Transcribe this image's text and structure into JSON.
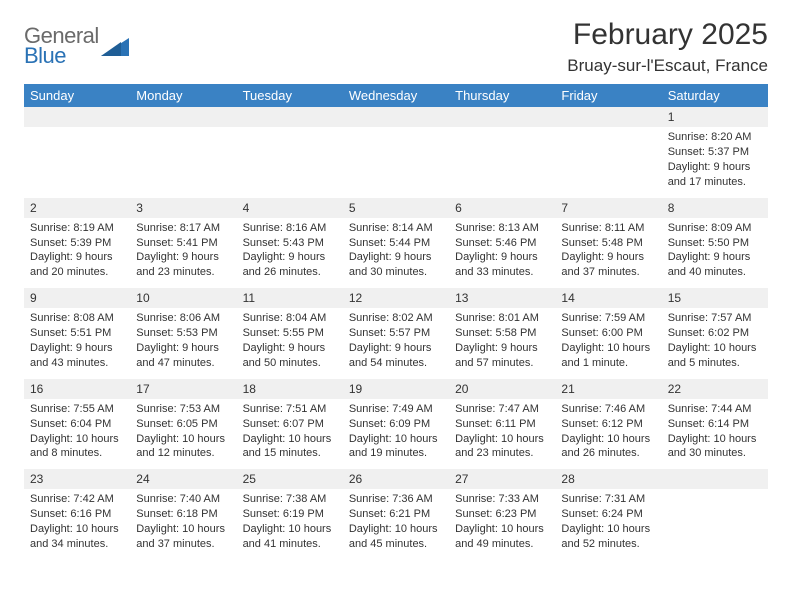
{
  "logo": {
    "text_top": "General",
    "text_bottom": "Blue"
  },
  "title": "February 2025",
  "location": "Bruay-sur-l'Escaut, France",
  "colors": {
    "header_bg": "#3a82c4",
    "header_fg": "#ffffff",
    "daynum_bg": "#f0f0f0",
    "page_bg": "#ffffff",
    "text": "#333333",
    "logo_gray": "#6a6a6a",
    "logo_blue": "#2a72b5"
  },
  "columns": [
    "Sunday",
    "Monday",
    "Tuesday",
    "Wednesday",
    "Thursday",
    "Friday",
    "Saturday"
  ],
  "weeks": [
    {
      "nums": [
        "",
        "",
        "",
        "",
        "",
        "",
        "1"
      ],
      "cells": [
        null,
        null,
        null,
        null,
        null,
        null,
        {
          "sunrise": "Sunrise: 8:20 AM",
          "sunset": "Sunset: 5:37 PM",
          "day1": "Daylight: 9 hours",
          "day2": "and 17 minutes."
        }
      ]
    },
    {
      "nums": [
        "2",
        "3",
        "4",
        "5",
        "6",
        "7",
        "8"
      ],
      "cells": [
        {
          "sunrise": "Sunrise: 8:19 AM",
          "sunset": "Sunset: 5:39 PM",
          "day1": "Daylight: 9 hours",
          "day2": "and 20 minutes."
        },
        {
          "sunrise": "Sunrise: 8:17 AM",
          "sunset": "Sunset: 5:41 PM",
          "day1": "Daylight: 9 hours",
          "day2": "and 23 minutes."
        },
        {
          "sunrise": "Sunrise: 8:16 AM",
          "sunset": "Sunset: 5:43 PM",
          "day1": "Daylight: 9 hours",
          "day2": "and 26 minutes."
        },
        {
          "sunrise": "Sunrise: 8:14 AM",
          "sunset": "Sunset: 5:44 PM",
          "day1": "Daylight: 9 hours",
          "day2": "and 30 minutes."
        },
        {
          "sunrise": "Sunrise: 8:13 AM",
          "sunset": "Sunset: 5:46 PM",
          "day1": "Daylight: 9 hours",
          "day2": "and 33 minutes."
        },
        {
          "sunrise": "Sunrise: 8:11 AM",
          "sunset": "Sunset: 5:48 PM",
          "day1": "Daylight: 9 hours",
          "day2": "and 37 minutes."
        },
        {
          "sunrise": "Sunrise: 8:09 AM",
          "sunset": "Sunset: 5:50 PM",
          "day1": "Daylight: 9 hours",
          "day2": "and 40 minutes."
        }
      ]
    },
    {
      "nums": [
        "9",
        "10",
        "11",
        "12",
        "13",
        "14",
        "15"
      ],
      "cells": [
        {
          "sunrise": "Sunrise: 8:08 AM",
          "sunset": "Sunset: 5:51 PM",
          "day1": "Daylight: 9 hours",
          "day2": "and 43 minutes."
        },
        {
          "sunrise": "Sunrise: 8:06 AM",
          "sunset": "Sunset: 5:53 PM",
          "day1": "Daylight: 9 hours",
          "day2": "and 47 minutes."
        },
        {
          "sunrise": "Sunrise: 8:04 AM",
          "sunset": "Sunset: 5:55 PM",
          "day1": "Daylight: 9 hours",
          "day2": "and 50 minutes."
        },
        {
          "sunrise": "Sunrise: 8:02 AM",
          "sunset": "Sunset: 5:57 PM",
          "day1": "Daylight: 9 hours",
          "day2": "and 54 minutes."
        },
        {
          "sunrise": "Sunrise: 8:01 AM",
          "sunset": "Sunset: 5:58 PM",
          "day1": "Daylight: 9 hours",
          "day2": "and 57 minutes."
        },
        {
          "sunrise": "Sunrise: 7:59 AM",
          "sunset": "Sunset: 6:00 PM",
          "day1": "Daylight: 10 hours",
          "day2": "and 1 minute."
        },
        {
          "sunrise": "Sunrise: 7:57 AM",
          "sunset": "Sunset: 6:02 PM",
          "day1": "Daylight: 10 hours",
          "day2": "and 5 minutes."
        }
      ]
    },
    {
      "nums": [
        "16",
        "17",
        "18",
        "19",
        "20",
        "21",
        "22"
      ],
      "cells": [
        {
          "sunrise": "Sunrise: 7:55 AM",
          "sunset": "Sunset: 6:04 PM",
          "day1": "Daylight: 10 hours",
          "day2": "and 8 minutes."
        },
        {
          "sunrise": "Sunrise: 7:53 AM",
          "sunset": "Sunset: 6:05 PM",
          "day1": "Daylight: 10 hours",
          "day2": "and 12 minutes."
        },
        {
          "sunrise": "Sunrise: 7:51 AM",
          "sunset": "Sunset: 6:07 PM",
          "day1": "Daylight: 10 hours",
          "day2": "and 15 minutes."
        },
        {
          "sunrise": "Sunrise: 7:49 AM",
          "sunset": "Sunset: 6:09 PM",
          "day1": "Daylight: 10 hours",
          "day2": "and 19 minutes."
        },
        {
          "sunrise": "Sunrise: 7:47 AM",
          "sunset": "Sunset: 6:11 PM",
          "day1": "Daylight: 10 hours",
          "day2": "and 23 minutes."
        },
        {
          "sunrise": "Sunrise: 7:46 AM",
          "sunset": "Sunset: 6:12 PM",
          "day1": "Daylight: 10 hours",
          "day2": "and 26 minutes."
        },
        {
          "sunrise": "Sunrise: 7:44 AM",
          "sunset": "Sunset: 6:14 PM",
          "day1": "Daylight: 10 hours",
          "day2": "and 30 minutes."
        }
      ]
    },
    {
      "nums": [
        "23",
        "24",
        "25",
        "26",
        "27",
        "28",
        ""
      ],
      "cells": [
        {
          "sunrise": "Sunrise: 7:42 AM",
          "sunset": "Sunset: 6:16 PM",
          "day1": "Daylight: 10 hours",
          "day2": "and 34 minutes."
        },
        {
          "sunrise": "Sunrise: 7:40 AM",
          "sunset": "Sunset: 6:18 PM",
          "day1": "Daylight: 10 hours",
          "day2": "and 37 minutes."
        },
        {
          "sunrise": "Sunrise: 7:38 AM",
          "sunset": "Sunset: 6:19 PM",
          "day1": "Daylight: 10 hours",
          "day2": "and 41 minutes."
        },
        {
          "sunrise": "Sunrise: 7:36 AM",
          "sunset": "Sunset: 6:21 PM",
          "day1": "Daylight: 10 hours",
          "day2": "and 45 minutes."
        },
        {
          "sunrise": "Sunrise: 7:33 AM",
          "sunset": "Sunset: 6:23 PM",
          "day1": "Daylight: 10 hours",
          "day2": "and 49 minutes."
        },
        {
          "sunrise": "Sunrise: 7:31 AM",
          "sunset": "Sunset: 6:24 PM",
          "day1": "Daylight: 10 hours",
          "day2": "and 52 minutes."
        },
        null
      ]
    }
  ]
}
